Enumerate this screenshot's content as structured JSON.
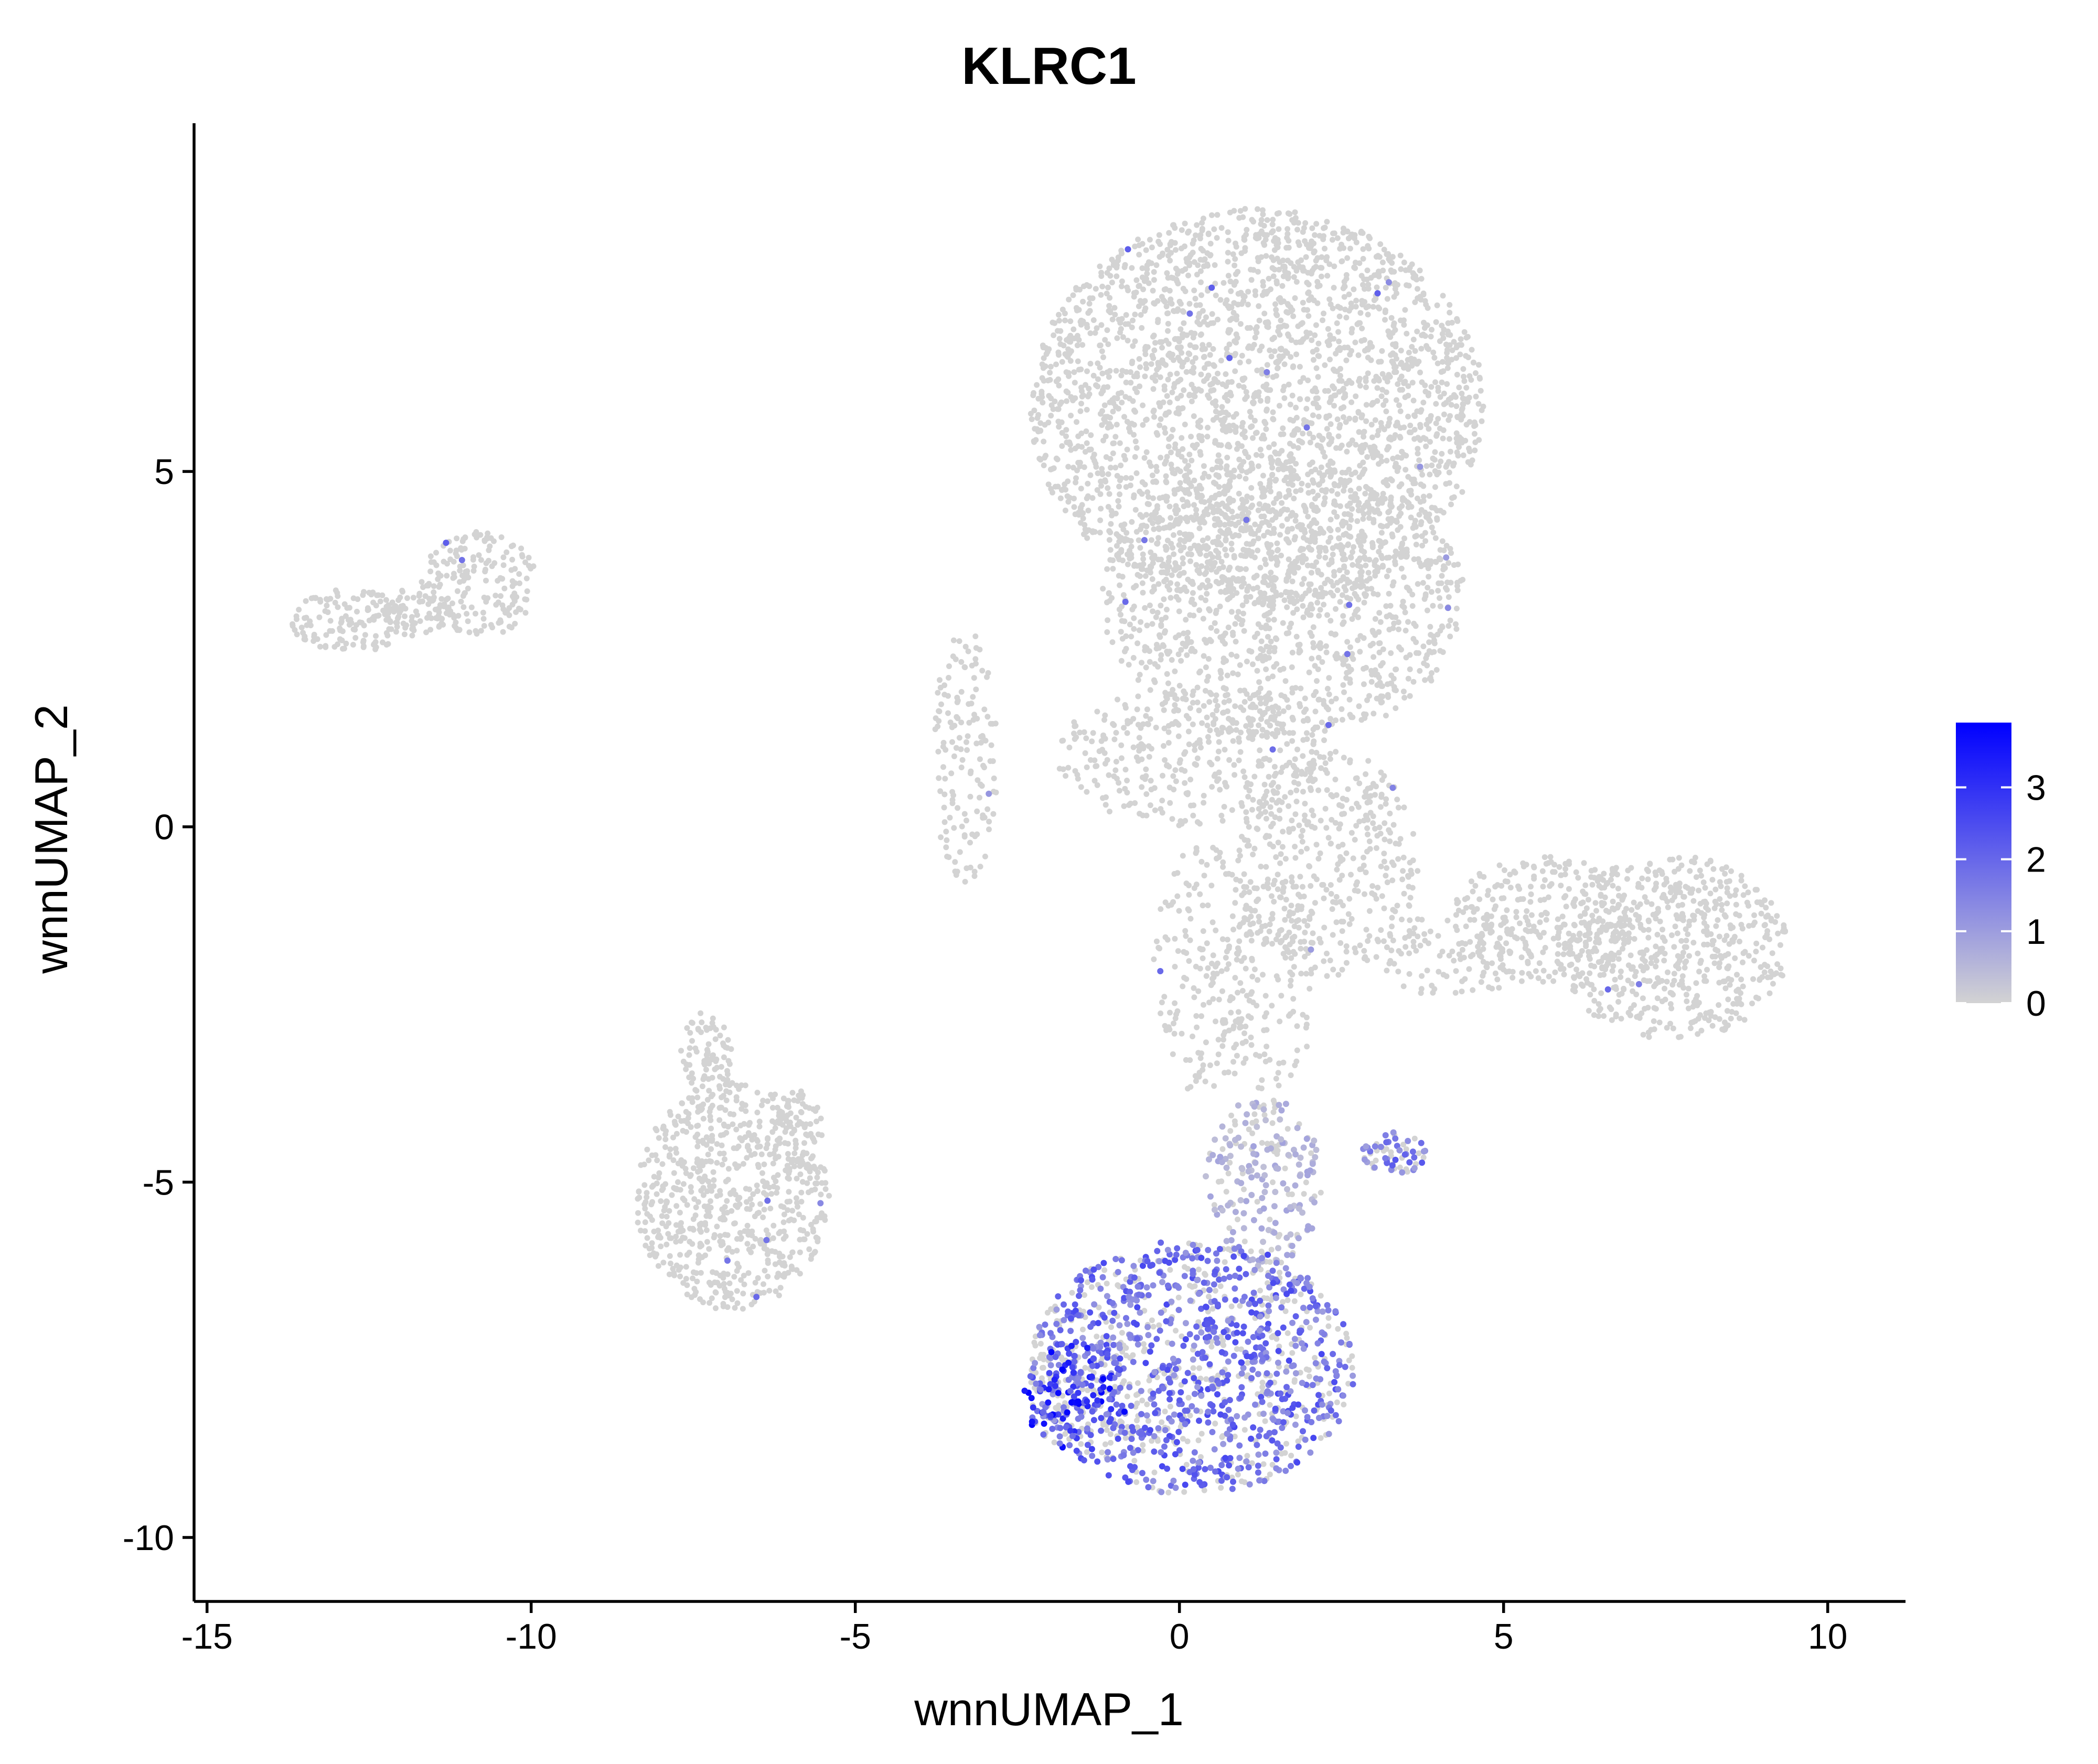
{
  "chart_data": {
    "type": "scatter",
    "title": "KLRC1",
    "xlabel": "wnnUMAP_1",
    "ylabel": "wnnUMAP_2",
    "xlim": [
      -15.2,
      11.2
    ],
    "ylim": [
      -10.9,
      9.9
    ],
    "x_ticks": [
      {
        "value": -15,
        "label": "-15"
      },
      {
        "value": -10,
        "label": "-10"
      },
      {
        "value": -5,
        "label": "-5"
      },
      {
        "value": 0,
        "label": "0"
      },
      {
        "value": 5,
        "label": "5"
      },
      {
        "value": 10,
        "label": "10"
      }
    ],
    "y_ticks": [
      {
        "value": 5,
        "label": "5"
      },
      {
        "value": 0,
        "label": "0"
      },
      {
        "value": -5,
        "label": "-5"
      },
      {
        "value": -10,
        "label": "-10"
      }
    ],
    "grid": false,
    "point_color_low": "#d3d3d3",
    "point_color_high": "#0000ff",
    "legend": {
      "type": "colorbar",
      "placement": "right",
      "min": 0,
      "max": 3.9,
      "ticks": [
        {
          "value": 0,
          "label": "0"
        },
        {
          "value": 1,
          "label": "1"
        },
        {
          "value": 2,
          "label": "2"
        },
        {
          "value": 3,
          "label": "3"
        }
      ]
    },
    "clusters": [
      {
        "name": "A",
        "cx": 1.2,
        "cy": 5.9,
        "rx": 3.5,
        "ry": 2.8,
        "density": 1.0,
        "expr": 0
      },
      {
        "name": "B",
        "cx": 1.6,
        "cy": 3.2,
        "rx": 2.8,
        "ry": 2.0,
        "density": 0.75,
        "expr": 0
      },
      {
        "name": "C",
        "cx": 0.2,
        "cy": 1.0,
        "rx": 2.1,
        "ry": 1.0,
        "density": 0.55,
        "expr": 0
      },
      {
        "name": "D",
        "cx": 2.3,
        "cy": -0.5,
        "rx": 1.4,
        "ry": 1.6,
        "density": 0.6,
        "expr": 0
      },
      {
        "name": "E",
        "cx": 7.6,
        "cy": -1.7,
        "rx": 1.8,
        "ry": 1.3,
        "density": 0.95,
        "expr": 0
      },
      {
        "name": "F",
        "cx": 5.6,
        "cy": -1.3,
        "rx": 1.4,
        "ry": 0.9,
        "density": 0.65,
        "expr": 0
      },
      {
        "name": "G",
        "cx": 4.2,
        "cy": -1.8,
        "rx": 1.2,
        "ry": 0.6,
        "density": 0.35,
        "expr": 0
      },
      {
        "name": "H",
        "cx": -3.3,
        "cy": 1.0,
        "rx": 0.5,
        "ry": 1.8,
        "density": 0.45,
        "expr": 0
      },
      {
        "name": "I",
        "cx": -12.8,
        "cy": 2.9,
        "rx": 0.9,
        "ry": 0.45,
        "density": 0.85,
        "expr": 0
      },
      {
        "name": "J",
        "cx": -10.8,
        "cy": 3.4,
        "rx": 0.9,
        "ry": 0.75,
        "density": 0.85,
        "expr": 0
      },
      {
        "name": "K",
        "cx": -11.8,
        "cy": 3.0,
        "rx": 0.6,
        "ry": 0.35,
        "density": 0.6,
        "expr": 0
      },
      {
        "name": "L",
        "cx": -6.9,
        "cy": -5.2,
        "rx": 1.5,
        "ry": 1.6,
        "density": 1.0,
        "expr": 0
      },
      {
        "name": "M",
        "cx": -7.3,
        "cy": -3.3,
        "rx": 0.4,
        "ry": 0.7,
        "density": 0.6,
        "expr": 0
      },
      {
        "name": "N",
        "cx": -5.9,
        "cy": -4.3,
        "rx": 0.4,
        "ry": 0.6,
        "density": 0.6,
        "expr": 0
      },
      {
        "name": "O",
        "cx": 0.4,
        "cy": -2.0,
        "rx": 0.8,
        "ry": 1.8,
        "density": 0.4,
        "expr": 0
      },
      {
        "name": "P",
        "cx": 1.4,
        "cy": -2.2,
        "rx": 0.7,
        "ry": 1.6,
        "density": 0.3,
        "expr": 0
      },
      {
        "name": "Q",
        "cx": 3.3,
        "cy": -4.6,
        "rx": 0.5,
        "ry": 0.3,
        "density": 0.6,
        "expr": 1.8
      },
      {
        "name": "R",
        "cx": 1.3,
        "cy": -5.0,
        "rx": 0.9,
        "ry": 1.2,
        "density": 0.6,
        "expr": 0.7
      },
      {
        "name": "S",
        "cx": 0.2,
        "cy": -7.6,
        "rx": 2.5,
        "ry": 1.8,
        "density": 1.0,
        "expr": 2.0
      },
      {
        "name": "T",
        "cx": -1.6,
        "cy": -8.0,
        "rx": 0.8,
        "ry": 0.8,
        "density": 0.9,
        "expr": 3.0
      }
    ]
  }
}
